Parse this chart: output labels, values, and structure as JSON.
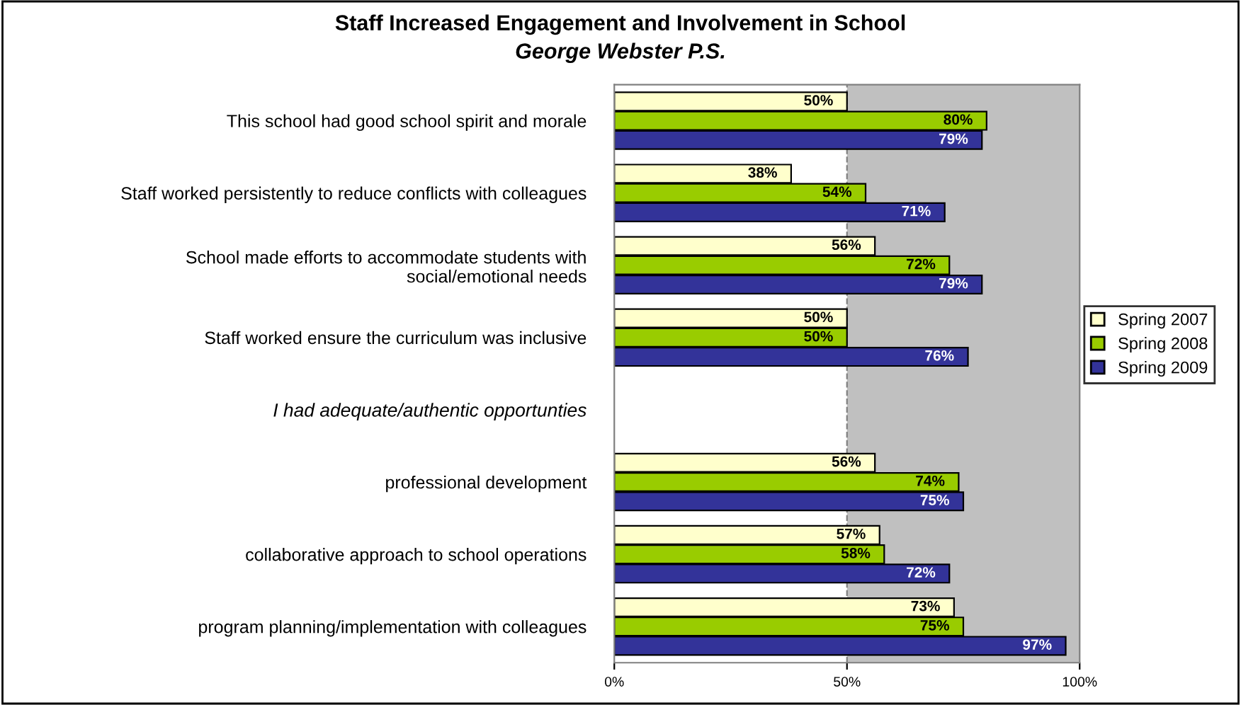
{
  "chart_data": {
    "type": "bar",
    "orientation": "horizontal",
    "title": "Staff Increased Engagement and Involvement in School",
    "subtitle": "George Webster P.S.",
    "categories": [
      "This school had good school spirit and morale",
      "Staff worked persistently to reduce conflicts with colleagues",
      "School made efforts to accommodate students with\nsocial/emotional needs",
      "Staff worked ensure the curriculum was inclusive",
      "I had adequate/authentic opportunties",
      "professional development",
      "collaborative approach to school operations",
      "program planning/implementation with colleagues"
    ],
    "series": [
      {
        "name": "Spring 2007",
        "color": "#ffffcc",
        "values": [
          50,
          38,
          56,
          50,
          null,
          56,
          57,
          73
        ],
        "value_labels": [
          "50%",
          "38%",
          "56%",
          "50%",
          null,
          "56%",
          "57%",
          "73%"
        ]
      },
      {
        "name": "Spring 2008",
        "color": "#99cc00",
        "values": [
          80,
          54,
          72,
          50,
          null,
          74,
          58,
          75
        ],
        "value_labels": [
          "80%",
          "54%",
          "72%",
          "50%",
          null,
          "74%",
          "58%",
          "75%"
        ]
      },
      {
        "name": "Spring 2009",
        "color": "#333399",
        "values": [
          79,
          71,
          79,
          76,
          null,
          75,
          72,
          97
        ],
        "value_labels": [
          "79%",
          "71%",
          "79%",
          "76%",
          null,
          "75%",
          "72%",
          "97%"
        ]
      }
    ],
    "xlim": [
      0,
      100
    ],
    "xticks": [
      {
        "value": 0,
        "label": "0%"
      },
      {
        "value": 50,
        "label": "50%"
      },
      {
        "value": 100,
        "label": "100%"
      }
    ],
    "legend": "right",
    "grid": false,
    "bands": [
      {
        "axis": "x",
        "from": 50,
        "to": 100,
        "label": null,
        "color": "#c0c0c0"
      }
    ],
    "ref_lines": [
      {
        "axis": "x",
        "value": 50,
        "label": null,
        "line_style": "dashed",
        "color": "#808080"
      }
    ]
  }
}
